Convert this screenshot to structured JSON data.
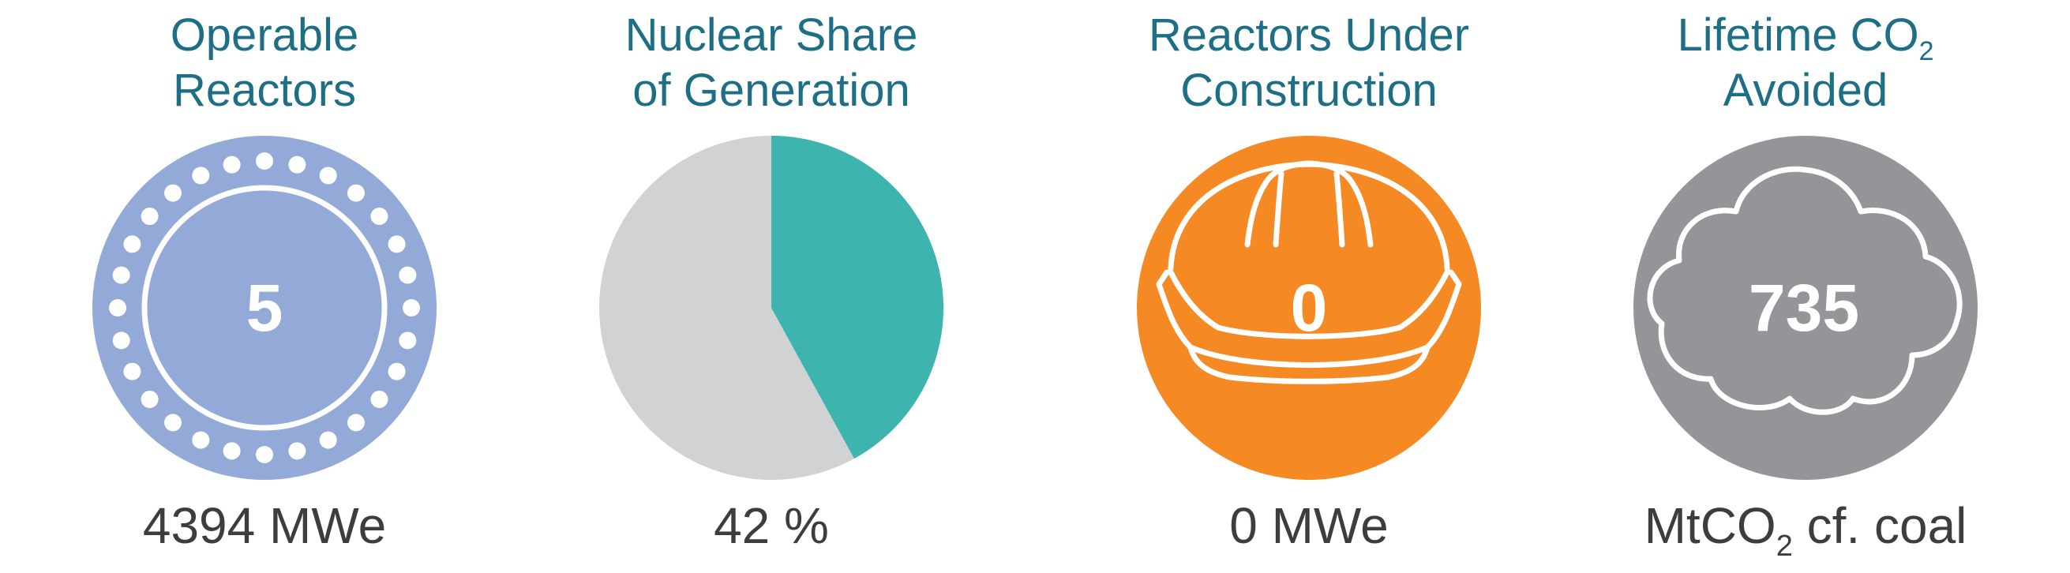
{
  "chart_data": [
    {
      "type": "other",
      "title_lines": [
        "Operable",
        "Reactors"
      ],
      "value": "5",
      "caption": "4394 MWe",
      "icon": "reactor-ring-icon",
      "color": "#93aad8"
    },
    {
      "type": "pie",
      "title_lines": [
        "Nuclear Share",
        "of Generation"
      ],
      "values": [
        42,
        58
      ],
      "colors": [
        "#3db5ae",
        "#d1d2d4"
      ],
      "caption": "42 %"
    },
    {
      "type": "other",
      "title_lines": [
        "Reactors Under",
        "Construction"
      ],
      "value": "0",
      "caption": "0 MWe",
      "icon": "hard-hat-icon",
      "color": "#f58a25"
    },
    {
      "type": "other",
      "title_line1": "Lifetime CO",
      "title_line1_sub": "2",
      "title_line2": "Avoided",
      "value": "735",
      "caption_main": "MtCO",
      "caption_sub": "2",
      "caption_rest": " cf. coal",
      "icon": "cloud-icon",
      "color": "#939598"
    }
  ]
}
